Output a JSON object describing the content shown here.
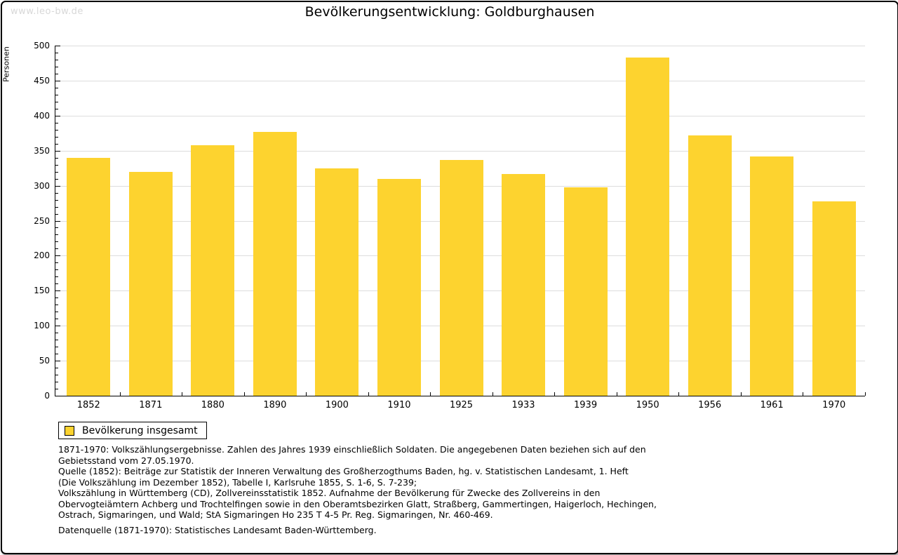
{
  "watermark": "www.leo-bw.de",
  "title": "Bevölkerungsentwicklung: Goldburghausen",
  "chart_data": {
    "type": "bar",
    "title": "Bevölkerungsentwicklung: Goldburghausen",
    "xlabel": "",
    "ylabel": "Personen",
    "categories": [
      "1852",
      "1871",
      "1880",
      "1890",
      "1900",
      "1910",
      "1925",
      "1933",
      "1939",
      "1950",
      "1956",
      "1961",
      "1970"
    ],
    "values": [
      340,
      320,
      358,
      377,
      325,
      310,
      337,
      317,
      298,
      483,
      372,
      342,
      278
    ],
    "ylim": [
      0,
      500
    ],
    "ytick_step": 50,
    "yminor_step": 10,
    "grid": true,
    "bar_color": "#FDD32F",
    "grid_color": "#DDDDDD",
    "axis_color": "#000000",
    "legend_position": "bottom-left"
  },
  "legend": {
    "label": "Bevölkerung insgesamt",
    "swatch_color": "#FDD32F"
  },
  "footnotes": {
    "lines": [
      "1871-1970: Volkszählungsergebnisse. Zahlen des Jahres 1939 einschließlich Soldaten. Die angegebenen Daten beziehen sich auf den",
      "Gebietsstand vom 27.05.1970.",
      "Quelle (1852): Beiträge zur Statistik der Inneren Verwaltung des Großherzogthums Baden, hg. v. Statistischen Landesamt, 1. Heft",
      "(Die Volkszählung im Dezember 1852), Tabelle I, Karlsruhe 1855, S. 1-6, S. 7-239;",
      "Volkszählung in Württemberg (CD), Zollvereinsstatistik 1852. Aufnahme der Bevölkerung für Zwecke des Zollvereins in den",
      "Obervogteiämtern Achberg und Trochtelfingen sowie in den Oberamtsbezirken Glatt, Straßberg, Gammertingen, Haigerloch, Hechingen,",
      "Ostrach, Sigmaringen, und Wald; StA Sigmaringen Ho 235 T 4-5 Pr. Reg. Sigmaringen, Nr. 460-469."
    ],
    "datasource": "Datenquelle (1871-1970): Statistisches Landesamt Baden-Württemberg."
  }
}
